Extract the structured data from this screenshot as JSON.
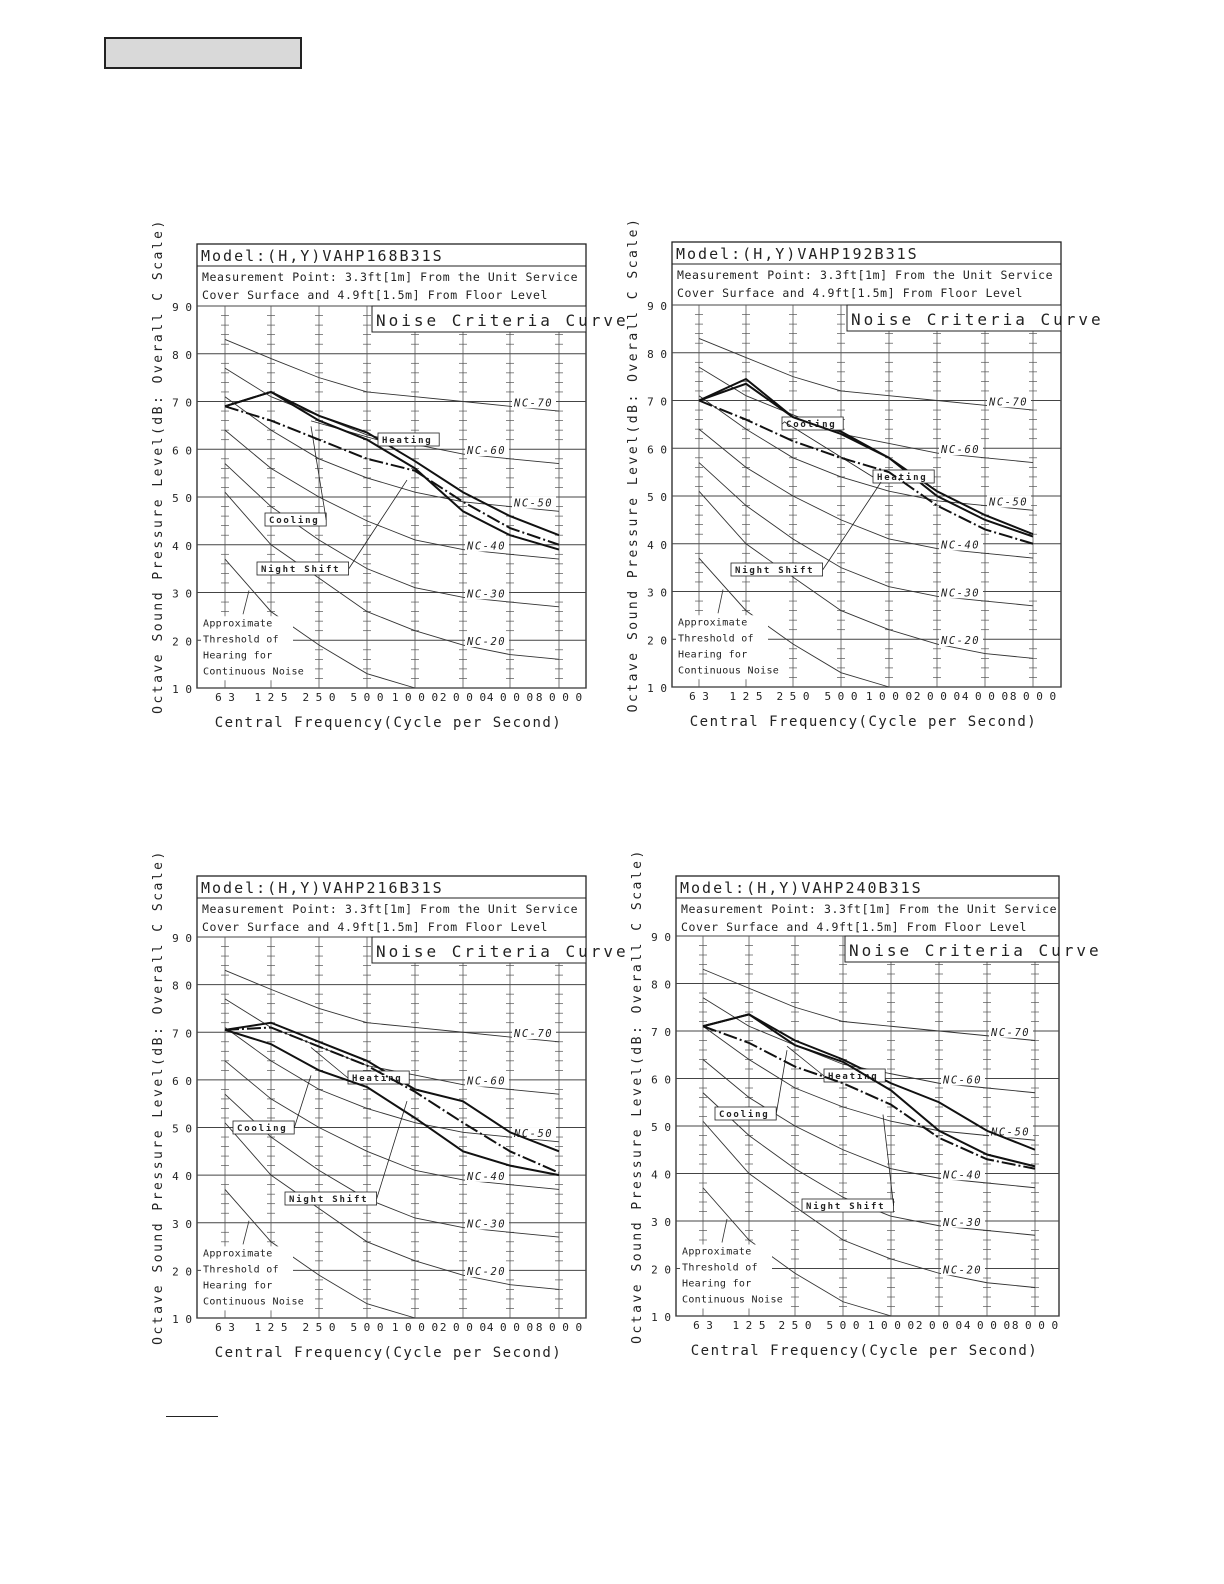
{
  "charts": [
    {
      "model_title": "Model:(H,Y)VAHP168B31S",
      "measurement_line1": "Measurement Point: 3.3ft[1m] From the Unit Service",
      "measurement_line2": "Cover Surface and 4.9ft[1.5m] From Floor Level"
    },
    {
      "model_title": "Model:(H,Y)VAHP192B31S",
      "measurement_line1": "Measurement Point: 3.3ft[1m] From the Unit Service",
      "measurement_line2": "Cover Surface and 4.9ft[1.5m] From Floor Level"
    },
    {
      "model_title": "Model:(H,Y)VAHP216B31S",
      "measurement_line1": "Measurement Point: 3.3ft[1m] From the Unit Service",
      "measurement_line2": "Cover Surface and 4.9ft[1.5m] From Floor Level"
    },
    {
      "model_title": "Model:(H,Y)VAHP240B31S",
      "measurement_line1": "Measurement Point: 3.3ft[1m] From the Unit Service",
      "measurement_line2": "Cover Surface and 4.9ft[1.5m] From Floor Level"
    }
  ],
  "common": {
    "noise_criteria_label": "Noise Criteria Curve",
    "xlabel": "Central Frequency(Cycle per Second)",
    "ylabel": "Octave Sound Pressure Level(dB: Overall C Scale)",
    "threshold_lines": [
      "Approximate",
      "Threshold of",
      "Hearing for",
      "Continuous Noise"
    ],
    "label_heating": "Heating",
    "label_cooling": "Cooling",
    "label_night_shift": "Night Shift"
  },
  "chart_data": [
    {
      "type": "line",
      "title": "Model:(H,Y)VAHP168B31S",
      "xlabel": "Central Frequency(Cycle per Second)",
      "ylabel": "Octave Sound Pressure Level(dB: Overall C Scale)",
      "categories": [
        "63",
        "125",
        "250",
        "500",
        "1000",
        "2000",
        "4000",
        "8000"
      ],
      "ylim": [
        10,
        90
      ],
      "yticks": [
        10,
        20,
        30,
        40,
        50,
        60,
        70,
        80,
        90
      ],
      "grid": true,
      "series": [
        {
          "name": "Heating",
          "style": "solid",
          "values": [
            69,
            72,
            67,
            63.5,
            57.5,
            51,
            46,
            42
          ]
        },
        {
          "name": "Cooling",
          "style": "solid",
          "values": [
            69,
            72,
            66,
            62,
            56,
            47,
            42,
            39
          ]
        },
        {
          "name": "Night Shift",
          "style": "dashdot",
          "values": [
            69,
            66,
            62,
            58,
            55.5,
            49,
            43.5,
            40
          ]
        }
      ],
      "nc_curves": [
        {
          "name": "NC-70",
          "values": [
            83,
            79,
            75,
            72,
            71,
            70,
            69,
            68
          ]
        },
        {
          "name": "NC-60",
          "values": [
            77,
            71,
            67,
            63,
            61,
            59,
            58,
            57
          ]
        },
        {
          "name": "NC-50",
          "values": [
            71,
            64,
            58,
            54,
            51,
            49,
            48,
            47
          ]
        },
        {
          "name": "NC-40",
          "values": [
            64,
            56,
            50,
            45,
            41,
            39,
            38,
            37
          ]
        },
        {
          "name": "NC-30",
          "values": [
            57,
            48,
            41,
            35,
            31,
            29,
            28,
            27
          ]
        },
        {
          "name": "NC-20",
          "values": [
            51,
            40,
            33,
            26,
            22,
            19,
            17,
            16
          ]
        }
      ],
      "threshold_curve": [
        37,
        26,
        19,
        13,
        10
      ]
    },
    {
      "type": "line",
      "title": "Model:(H,Y)VAHP192B31S",
      "xlabel": "Central Frequency(Cycle per Second)",
      "ylabel": "Octave Sound Pressure Level(dB: Overall C Scale)",
      "categories": [
        "63",
        "125",
        "250",
        "500",
        "1000",
        "2000",
        "4000",
        "8000"
      ],
      "ylim": [
        10,
        90
      ],
      "yticks": [
        10,
        20,
        30,
        40,
        50,
        60,
        70,
        80,
        90
      ],
      "grid": true,
      "series": [
        {
          "name": "Cooling",
          "style": "solid",
          "values": [
            70,
            74.5,
            66.5,
            63.5,
            58,
            51,
            46,
            42
          ]
        },
        {
          "name": "Heating",
          "style": "solid",
          "values": [
            70,
            73.5,
            66.5,
            63,
            58,
            50,
            45,
            41.5
          ]
        },
        {
          "name": "Night Shift",
          "style": "dashdot",
          "values": [
            70,
            66,
            61.5,
            58,
            55,
            48,
            43,
            40
          ]
        }
      ],
      "nc_curves": [
        {
          "name": "NC-70",
          "values": [
            83,
            79,
            75,
            72,
            71,
            70,
            69,
            68
          ]
        },
        {
          "name": "NC-60",
          "values": [
            77,
            71,
            67,
            63,
            61,
            59,
            58,
            57
          ]
        },
        {
          "name": "NC-50",
          "values": [
            71,
            64,
            58,
            54,
            51,
            49,
            48,
            47
          ]
        },
        {
          "name": "NC-40",
          "values": [
            64,
            56,
            50,
            45,
            41,
            39,
            38,
            37
          ]
        },
        {
          "name": "NC-30",
          "values": [
            57,
            48,
            41,
            35,
            31,
            29,
            28,
            27
          ]
        },
        {
          "name": "NC-20",
          "values": [
            51,
            40,
            33,
            26,
            22,
            19,
            17,
            16
          ]
        }
      ],
      "threshold_curve": [
        37,
        26,
        19,
        13,
        10
      ]
    },
    {
      "type": "line",
      "title": "Model:(H,Y)VAHP216B31S",
      "xlabel": "Central Frequency(Cycle per Second)",
      "ylabel": "Octave Sound Pressure Level(dB: Overall C Scale)",
      "categories": [
        "63",
        "125",
        "250",
        "500",
        "1000",
        "2000",
        "4000",
        "8000"
      ],
      "ylim": [
        10,
        90
      ],
      "yticks": [
        10,
        20,
        30,
        40,
        50,
        60,
        70,
        80,
        90
      ],
      "grid": true,
      "series": [
        {
          "name": "Heating",
          "style": "solid",
          "values": [
            70.5,
            72,
            68,
            64,
            58,
            55.5,
            49,
            45
          ]
        },
        {
          "name": "Cooling",
          "style": "solid",
          "values": [
            70.5,
            67.5,
            62,
            58.5,
            52,
            45,
            42,
            40
          ]
        },
        {
          "name": "Night Shift",
          "style": "dashdot",
          "values": [
            70.5,
            71,
            67,
            63,
            57.5,
            51,
            45,
            40.5
          ]
        }
      ],
      "nc_curves": [
        {
          "name": "NC-70",
          "values": [
            83,
            79,
            75,
            72,
            71,
            70,
            69,
            68
          ]
        },
        {
          "name": "NC-60",
          "values": [
            77,
            71,
            67,
            63,
            61,
            59,
            58,
            57
          ]
        },
        {
          "name": "NC-50",
          "values": [
            71,
            64,
            58,
            54,
            51,
            49,
            48,
            47
          ]
        },
        {
          "name": "NC-40",
          "values": [
            64,
            56,
            50,
            45,
            41,
            39,
            38,
            37
          ]
        },
        {
          "name": "NC-30",
          "values": [
            57,
            48,
            41,
            35,
            31,
            29,
            28,
            27
          ]
        },
        {
          "name": "NC-20",
          "values": [
            51,
            40,
            33,
            26,
            22,
            19,
            17,
            16
          ]
        }
      ],
      "threshold_curve": [
        37,
        26,
        19,
        13,
        10
      ]
    },
    {
      "type": "line",
      "title": "Model:(H,Y)VAHP240B31S",
      "xlabel": "Central Frequency(Cycle per Second)",
      "ylabel": "Octave Sound Pressure Level(dB: Overall C Scale)",
      "categories": [
        "63",
        "125",
        "250",
        "500",
        "1000",
        "2000",
        "4000",
        "8000"
      ],
      "ylim": [
        10,
        90
      ],
      "yticks": [
        10,
        20,
        30,
        40,
        50,
        60,
        70,
        80,
        90
      ],
      "grid": true,
      "series": [
        {
          "name": "Heating",
          "style": "solid",
          "values": [
            71,
            73.5,
            68,
            64,
            59,
            55,
            49,
            45
          ]
        },
        {
          "name": "Cooling",
          "style": "solid",
          "values": [
            71,
            73.5,
            67,
            63.5,
            57.5,
            49,
            44,
            41.5
          ]
        },
        {
          "name": "Night Shift",
          "style": "dashdot",
          "values": [
            71,
            67.5,
            62.5,
            59,
            54.5,
            47.5,
            43,
            41
          ]
        }
      ],
      "nc_curves": [
        {
          "name": "NC-70",
          "values": [
            83,
            79,
            75,
            72,
            71,
            70,
            69,
            68
          ]
        },
        {
          "name": "NC-60",
          "values": [
            77,
            71,
            67,
            63,
            61,
            59,
            58,
            57
          ]
        },
        {
          "name": "NC-50",
          "values": [
            71,
            64,
            58,
            54,
            51,
            49,
            48,
            47
          ]
        },
        {
          "name": "NC-40",
          "values": [
            64,
            56,
            50,
            45,
            41,
            39,
            38,
            37
          ]
        },
        {
          "name": "NC-30",
          "values": [
            57,
            48,
            41,
            35,
            31,
            29,
            28,
            27
          ]
        },
        {
          "name": "NC-20",
          "values": [
            51,
            40,
            33,
            26,
            22,
            19,
            17,
            16
          ]
        }
      ],
      "threshold_curve": [
        37,
        26,
        19,
        13,
        10
      ]
    }
  ]
}
